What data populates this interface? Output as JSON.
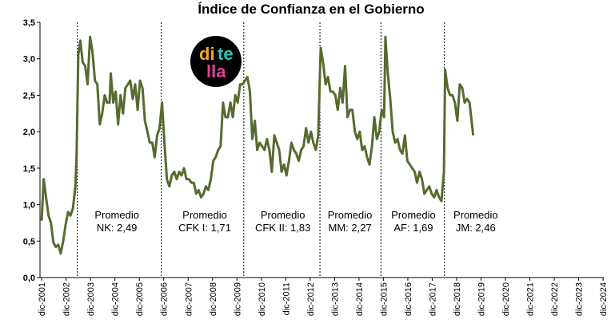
{
  "chart_data": {
    "type": "line",
    "title": "Índice de Confianza en el Gobierno",
    "xlabel": "",
    "ylabel": "",
    "ylim": [
      0,
      3.5
    ],
    "yticks": [
      "0,0",
      "0,5",
      "1,0",
      "1,5",
      "2,0",
      "2,5",
      "3,0",
      "3,5"
    ],
    "xticks": [
      "dic-2001",
      "dic-2002",
      "dic-2003",
      "dic-2004",
      "dic-2005",
      "dic-2006",
      "dic-2007",
      "dic-2008",
      "dic-2009",
      "dic-2010",
      "dic-2011",
      "dic-2012",
      "dic-2013",
      "dic-2014",
      "dic-2015",
      "dic-2016",
      "dic-2017",
      "dic-2018",
      "dic-2019",
      "dic-2020",
      "dic-2021",
      "dic-2022",
      "dic-2023",
      "dic-2024"
    ],
    "line_color": "#556b2f",
    "grid": false,
    "series": [
      {
        "values": [
          [
            2001.92,
            0.78
          ],
          [
            2002.0,
            1.35
          ],
          [
            2002.1,
            1.1
          ],
          [
            2002.2,
            0.85
          ],
          [
            2002.3,
            0.75
          ],
          [
            2002.4,
            0.48
          ],
          [
            2002.5,
            0.42
          ],
          [
            2002.6,
            0.45
          ],
          [
            2002.7,
            0.33
          ],
          [
            2002.8,
            0.5
          ],
          [
            2002.9,
            0.72
          ],
          [
            2003.0,
            0.9
          ],
          [
            2003.1,
            0.85
          ],
          [
            2003.2,
            0.95
          ],
          [
            2003.3,
            1.25
          ],
          [
            2003.35,
            1.7
          ],
          [
            2003.42,
            3.05
          ],
          [
            2003.5,
            3.25
          ],
          [
            2003.6,
            2.95
          ],
          [
            2003.7,
            2.9
          ],
          [
            2003.8,
            2.65
          ],
          [
            2003.9,
            3.3
          ],
          [
            2004.0,
            3.1
          ],
          [
            2004.1,
            2.7
          ],
          [
            2004.2,
            2.65
          ],
          [
            2004.3,
            2.1
          ],
          [
            2004.4,
            2.25
          ],
          [
            2004.5,
            2.5
          ],
          [
            2004.6,
            2.4
          ],
          [
            2004.7,
            2.4
          ],
          [
            2004.75,
            2.8
          ],
          [
            2004.85,
            2.4
          ],
          [
            2004.95,
            2.55
          ],
          [
            2005.05,
            2.1
          ],
          [
            2005.15,
            2.5
          ],
          [
            2005.25,
            2.25
          ],
          [
            2005.35,
            2.6
          ],
          [
            2005.45,
            2.65
          ],
          [
            2005.55,
            2.7
          ],
          [
            2005.65,
            2.45
          ],
          [
            2005.75,
            2.65
          ],
          [
            2005.85,
            2.3
          ],
          [
            2005.95,
            2.7
          ],
          [
            2006.05,
            2.6
          ],
          [
            2006.15,
            2.15
          ],
          [
            2006.25,
            2.0
          ],
          [
            2006.35,
            1.85
          ],
          [
            2006.45,
            1.85
          ],
          [
            2006.55,
            1.65
          ],
          [
            2006.65,
            1.95
          ],
          [
            2006.75,
            2.05
          ],
          [
            2006.85,
            2.4
          ],
          [
            2006.95,
            1.85
          ],
          [
            2007.05,
            1.35
          ],
          [
            2007.15,
            1.25
          ],
          [
            2007.25,
            1.4
          ],
          [
            2007.35,
            1.45
          ],
          [
            2007.45,
            1.35
          ],
          [
            2007.55,
            1.45
          ],
          [
            2007.65,
            1.4
          ],
          [
            2007.75,
            1.5
          ],
          [
            2007.85,
            1.35
          ],
          [
            2007.95,
            1.35
          ],
          [
            2008.05,
            1.3
          ],
          [
            2008.15,
            1.3
          ],
          [
            2008.25,
            1.15
          ],
          [
            2008.35,
            1.2
          ],
          [
            2008.45,
            1.1
          ],
          [
            2008.55,
            1.15
          ],
          [
            2008.65,
            1.25
          ],
          [
            2008.75,
            1.2
          ],
          [
            2008.85,
            1.35
          ],
          [
            2008.95,
            1.6
          ],
          [
            2009.05,
            1.65
          ],
          [
            2009.15,
            1.75
          ],
          [
            2009.25,
            1.8
          ],
          [
            2009.35,
            2.4
          ],
          [
            2009.45,
            2.2
          ],
          [
            2009.55,
            2.2
          ],
          [
            2009.65,
            2.4
          ],
          [
            2009.75,
            2.2
          ],
          [
            2009.85,
            2.5
          ],
          [
            2009.95,
            2.4
          ],
          [
            2010.05,
            2.65
          ],
          [
            2010.15,
            2.65
          ],
          [
            2010.25,
            2.7
          ],
          [
            2010.35,
            2.75
          ],
          [
            2010.45,
            2.55
          ],
          [
            2010.55,
            1.9
          ],
          [
            2010.65,
            2.15
          ],
          [
            2010.75,
            1.75
          ],
          [
            2010.85,
            1.85
          ],
          [
            2010.95,
            1.8
          ],
          [
            2011.05,
            1.75
          ],
          [
            2011.15,
            1.9
          ],
          [
            2011.25,
            1.75
          ],
          [
            2011.35,
            1.45
          ],
          [
            2011.45,
            1.95
          ],
          [
            2011.55,
            1.85
          ],
          [
            2011.65,
            1.75
          ],
          [
            2011.75,
            1.45
          ],
          [
            2011.85,
            1.55
          ],
          [
            2011.95,
            1.4
          ],
          [
            2012.05,
            1.6
          ],
          [
            2012.15,
            1.85
          ],
          [
            2012.25,
            1.75
          ],
          [
            2012.35,
            1.7
          ],
          [
            2012.45,
            1.6
          ],
          [
            2012.55,
            1.75
          ],
          [
            2012.65,
            1.8
          ],
          [
            2012.75,
            2.05
          ],
          [
            2012.85,
            1.85
          ],
          [
            2012.95,
            2.0
          ],
          [
            2013.05,
            1.85
          ],
          [
            2013.15,
            1.75
          ],
          [
            2013.25,
            1.95
          ],
          [
            2013.35,
            3.15
          ],
          [
            2013.45,
            2.95
          ],
          [
            2013.55,
            2.65
          ],
          [
            2013.65,
            2.75
          ],
          [
            2013.75,
            2.55
          ],
          [
            2013.85,
            2.55
          ],
          [
            2013.95,
            2.5
          ],
          [
            2014.05,
            2.3
          ],
          [
            2014.15,
            2.6
          ],
          [
            2014.25,
            2.4
          ],
          [
            2014.35,
            2.9
          ],
          [
            2014.45,
            2.2
          ],
          [
            2014.55,
            2.3
          ],
          [
            2014.65,
            2.3
          ],
          [
            2014.75,
            2.0
          ],
          [
            2014.85,
            1.9
          ],
          [
            2014.95,
            2.0
          ],
          [
            2015.05,
            1.75
          ],
          [
            2015.15,
            1.8
          ],
          [
            2015.25,
            1.65
          ],
          [
            2015.35,
            1.55
          ],
          [
            2015.45,
            1.8
          ],
          [
            2015.55,
            2.2
          ],
          [
            2015.65,
            1.9
          ],
          [
            2015.75,
            2.0
          ],
          [
            2015.85,
            2.3
          ],
          [
            2015.95,
            2.2
          ],
          [
            2016.0,
            3.3
          ],
          [
            2016.1,
            2.8
          ],
          [
            2016.2,
            2.45
          ],
          [
            2016.3,
            2.0
          ],
          [
            2016.4,
            1.85
          ],
          [
            2016.5,
            1.9
          ],
          [
            2016.6,
            1.75
          ],
          [
            2016.7,
            1.7
          ],
          [
            2016.8,
            1.95
          ],
          [
            2016.9,
            1.6
          ],
          [
            2017.0,
            1.55
          ],
          [
            2017.1,
            1.5
          ],
          [
            2017.2,
            1.45
          ],
          [
            2017.3,
            1.3
          ],
          [
            2017.4,
            1.45
          ],
          [
            2017.5,
            1.35
          ],
          [
            2017.6,
            1.15
          ],
          [
            2017.7,
            1.2
          ],
          [
            2017.8,
            1.25
          ],
          [
            2017.9,
            1.15
          ],
          [
            2018.0,
            1.1
          ],
          [
            2018.1,
            1.2
          ],
          [
            2018.2,
            1.1
          ],
          [
            2018.3,
            1.05
          ],
          [
            2018.4,
            1.45
          ],
          [
            2018.45,
            2.85
          ],
          [
            2018.55,
            2.6
          ],
          [
            2018.65,
            2.5
          ],
          [
            2018.75,
            2.5
          ],
          [
            2018.85,
            2.4
          ],
          [
            2018.95,
            2.15
          ],
          [
            2019.05,
            2.65
          ],
          [
            2019.15,
            2.6
          ],
          [
            2019.25,
            2.4
          ],
          [
            2019.35,
            2.45
          ],
          [
            2019.45,
            2.4
          ],
          [
            2019.55,
            2.1
          ],
          [
            2019.6,
            1.95
          ]
        ]
      }
    ],
    "x_tick_values": [
      2001.92,
      2002.92,
      2003.92,
      2004.92,
      2005.92,
      2006.92,
      2007.92,
      2008.92,
      2009.92,
      2010.92,
      2011.92,
      2012.92,
      2013.92,
      2014.92,
      2015.92,
      2016.92,
      2017.92,
      2018.92,
      2019.92,
      2020.92,
      2021.92,
      2022.92,
      2023.92,
      2024.92
    ],
    "dividers": [
      2003.38,
      2006.82,
      2010.2,
      2013.32,
      2015.82,
      2018.42
    ],
    "annotations": [
      {
        "line1": "Promedio",
        "line2": "NK: 2,49",
        "x": 2005.0
      },
      {
        "line1": "Promedio",
        "line2": "CFK I: 1,71",
        "x": 2008.6
      },
      {
        "line1": "Promedio",
        "line2": "CFK II: 1,83",
        "x": 2011.8
      },
      {
        "line1": "Promedio",
        "line2": "MM: 2,27",
        "x": 2014.55
      },
      {
        "line1": "Promedio",
        "line2": "AF: 1,69",
        "x": 2017.15
      },
      {
        "line1": "Promedio",
        "line2": "JM: 2,46",
        "x": 2019.7
      }
    ]
  },
  "logo": {
    "row1a": "di",
    "row1b": "te",
    "row2": "lla",
    "bg_color": "#000000",
    "colors": [
      "#f5a623",
      "#2ec4b6",
      "#e0409a"
    ]
  }
}
